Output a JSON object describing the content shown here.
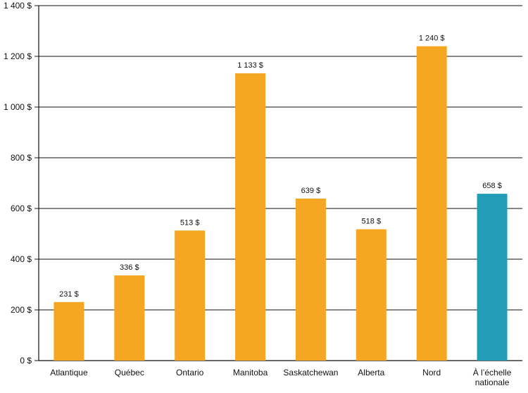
{
  "chart_data": {
    "type": "bar",
    "categories": [
      "Atlantique",
      "Québec",
      "Ontario",
      "Manitoba",
      "Saskatchewan",
      "Alberta",
      "Nord",
      "À l’échelle nationale"
    ],
    "category_lines": [
      [
        "Atlantique"
      ],
      [
        "Québec"
      ],
      [
        "Ontario"
      ],
      [
        "Manitoba"
      ],
      [
        "Saskatchewan"
      ],
      [
        "Alberta"
      ],
      [
        "Nord"
      ],
      [
        "À l’échelle",
        "nationale"
      ]
    ],
    "values": [
      231,
      336,
      513,
      1133,
      639,
      518,
      1240,
      658
    ],
    "data_labels": [
      "231 $",
      "336 $",
      "513 $",
      "1 133 $",
      "639 $",
      "518 $",
      "1 240 $",
      "658 $"
    ],
    "y_ticks": [
      0,
      200,
      400,
      600,
      800,
      1000,
      1200,
      1400
    ],
    "y_tick_labels": [
      "0 $",
      "200 $",
      "400 $",
      "600 $",
      "800 $",
      "1 000 $",
      "1 200 $",
      "1 400 $"
    ],
    "ylim": [
      0,
      1400
    ],
    "title": "",
    "xlabel": "",
    "ylabel": "",
    "grid": true,
    "bar_colors": [
      "#F5A623",
      "#F5A623",
      "#F5A623",
      "#F5A623",
      "#F5A623",
      "#F5A623",
      "#F5A623",
      "#229DB8"
    ],
    "colors": {
      "axis": "#111111",
      "grid": "#111111",
      "text": "#111111",
      "highlight": "#229DB8",
      "default_bar": "#F5A623"
    }
  }
}
